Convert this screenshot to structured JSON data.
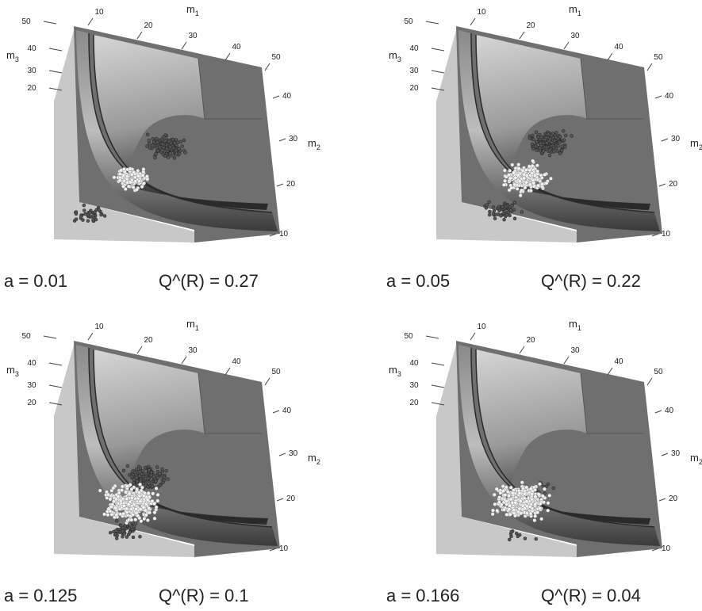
{
  "panels": [
    {
      "m1_label": {
        "base": "m",
        "sub": "1"
      },
      "m2_label": {
        "base": "m",
        "sub": "2"
      },
      "m3_label": {
        "base": "m",
        "sub": "3"
      },
      "m1_ticks": [
        "10",
        "20",
        "30",
        "40",
        "50"
      ],
      "m2_ticks": [
        "40",
        "30",
        "20",
        "10"
      ],
      "m3_ticks": [
        "50",
        "40",
        "30",
        "20"
      ],
      "caption_a": "a = 0.01",
      "caption_q": "Q^(R) = 0.27"
    },
    {
      "m1_label": {
        "base": "m",
        "sub": "1"
      },
      "m2_label": {
        "base": "m",
        "sub": "2"
      },
      "m3_label": {
        "base": "m",
        "sub": "3"
      },
      "m1_ticks": [
        "10",
        "20",
        "30",
        "40",
        "50"
      ],
      "m2_ticks": [
        "40",
        "30",
        "20",
        "10"
      ],
      "m3_ticks": [
        "50",
        "40",
        "30",
        "20"
      ],
      "caption_a": "a = 0.05",
      "caption_q": "Q^(R) = 0.22"
    },
    {
      "m1_label": {
        "base": "m",
        "sub": "1"
      },
      "m2_label": {
        "base": "m",
        "sub": "2"
      },
      "m3_label": {
        "base": "m",
        "sub": "3"
      },
      "m1_ticks": [
        "10",
        "20",
        "30",
        "40",
        "50"
      ],
      "m2_ticks": [
        "40",
        "30",
        "20",
        "10"
      ],
      "m3_ticks": [
        "50",
        "40",
        "30",
        "20"
      ],
      "caption_a": "a = 0.125",
      "caption_q": "Q^(R) = 0.1"
    },
    {
      "m1_label": {
        "base": "m",
        "sub": "1"
      },
      "m2_label": {
        "base": "m",
        "sub": "2"
      },
      "m3_label": {
        "base": "m",
        "sub": "3"
      },
      "m1_ticks": [
        "10",
        "20",
        "30",
        "40",
        "50"
      ],
      "m2_ticks": [
        "40",
        "30",
        "20",
        "10"
      ],
      "m3_ticks": [
        "50",
        "40",
        "30",
        "20"
      ],
      "caption_a": "a = 0.166",
      "caption_q": "Q^(R) = 0.04"
    }
  ]
}
